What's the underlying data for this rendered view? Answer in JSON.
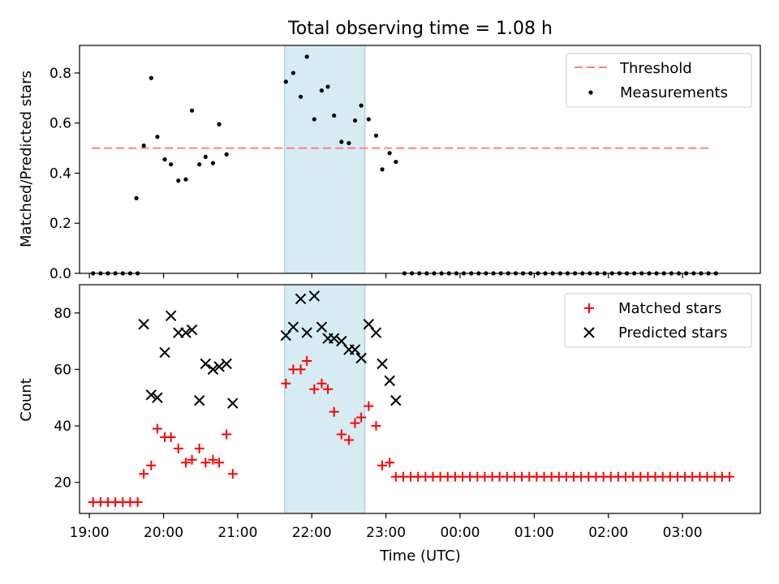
{
  "chart_data": [
    {
      "type": "scatter",
      "title": "Total observing time = 1.08 h",
      "ylabel": "Matched/Predicted stars",
      "xlabel": "",
      "xlim": [
        "18:52",
        "04:03"
      ],
      "ylim": [
        0,
        0.91
      ],
      "yticks": [
        "0.0",
        "0.2",
        "0.4",
        "0.6",
        "0.8"
      ],
      "grid": false,
      "legend_position": "top-right",
      "shaded_interval": [
        "21:38",
        "22:43"
      ],
      "threshold": {
        "name": "Threshold",
        "value": 0.5,
        "x_range": [
          "19:02",
          "03:22"
        ],
        "color": "#ff7f7f"
      },
      "series": [
        {
          "name": "Measurements",
          "color": "#000000",
          "points": [
            [
              "19:03",
              0
            ],
            [
              "19:09",
              0
            ],
            [
              "19:15",
              0
            ],
            [
              "19:21",
              0
            ],
            [
              "19:27",
              0
            ],
            [
              "19:33",
              0
            ],
            [
              "19:39",
              0
            ],
            [
              "19:38",
              0.3
            ],
            [
              "19:44",
              0.51
            ],
            [
              "19:50",
              0.78
            ],
            [
              "19:55",
              0.545
            ],
            [
              "20:01",
              0.455
            ],
            [
              "20:06",
              0.435
            ],
            [
              "20:12",
              0.37
            ],
            [
              "20:18",
              0.375
            ],
            [
              "20:23",
              0.65
            ],
            [
              "20:29",
              0.435
            ],
            [
              "20:34",
              0.465
            ],
            [
              "20:40",
              0.44
            ],
            [
              "20:45",
              0.595
            ],
            [
              "20:51",
              0.475
            ],
            [
              "21:39",
              0.765
            ],
            [
              "21:45",
              0.8
            ],
            [
              "21:51",
              0.705
            ],
            [
              "21:56",
              0.865
            ],
            [
              "22:02",
              0.615
            ],
            [
              "22:08",
              0.73
            ],
            [
              "22:13",
              0.745
            ],
            [
              "22:18",
              0.63
            ],
            [
              "22:24",
              0.525
            ],
            [
              "22:30",
              0.52
            ],
            [
              "22:35",
              0.61
            ],
            [
              "22:40",
              0.67
            ],
            [
              "22:46",
              0.615
            ],
            [
              "22:52",
              0.55
            ],
            [
              "22:57",
              0.415
            ],
            [
              "23:03",
              0.48
            ],
            [
              "23:08",
              0.445
            ],
            [
              "23:15",
              0
            ],
            [
              "23:21",
              0
            ],
            [
              "23:27",
              0
            ],
            [
              "23:33",
              0
            ],
            [
              "23:39",
              0
            ],
            [
              "23:45",
              0
            ],
            [
              "23:51",
              0
            ],
            [
              "23:57",
              0
            ],
            [
              "00:03",
              0
            ],
            [
              "00:09",
              0
            ],
            [
              "00:15",
              0
            ],
            [
              "00:21",
              0
            ],
            [
              "00:27",
              0
            ],
            [
              "00:33",
              0
            ],
            [
              "00:39",
              0
            ],
            [
              "00:45",
              0
            ],
            [
              "00:51",
              0
            ],
            [
              "00:57",
              0
            ],
            [
              "01:03",
              0
            ],
            [
              "01:09",
              0
            ],
            [
              "01:15",
              0
            ],
            [
              "01:21",
              0
            ],
            [
              "01:27",
              0
            ],
            [
              "01:33",
              0
            ],
            [
              "01:39",
              0
            ],
            [
              "01:45",
              0
            ],
            [
              "01:51",
              0
            ],
            [
              "01:57",
              0
            ],
            [
              "02:03",
              0
            ],
            [
              "02:09",
              0
            ],
            [
              "02:15",
              0
            ],
            [
              "02:21",
              0
            ],
            [
              "02:27",
              0
            ],
            [
              "02:33",
              0
            ],
            [
              "02:39",
              0
            ],
            [
              "02:45",
              0
            ],
            [
              "02:51",
              0
            ],
            [
              "02:57",
              0
            ],
            [
              "03:03",
              0
            ],
            [
              "03:09",
              0
            ],
            [
              "03:15",
              0
            ],
            [
              "03:21",
              0
            ],
            [
              "03:27",
              0
            ]
          ]
        }
      ]
    },
    {
      "type": "scatter",
      "title": "",
      "ylabel": "Count",
      "xlabel": "Time (UTC)",
      "xlim": [
        "18:52",
        "04:03"
      ],
      "ylim": [
        9,
        90
      ],
      "yticks": [
        "20",
        "40",
        "60",
        "80"
      ],
      "xticks": [
        "19:00",
        "20:00",
        "21:00",
        "22:00",
        "23:00",
        "00:00",
        "01:00",
        "02:00",
        "03:00"
      ],
      "grid": false,
      "legend_position": "top-right",
      "shaded_interval": [
        "21:38",
        "22:43"
      ],
      "series": [
        {
          "name": "Matched stars",
          "marker": "plus",
          "color": "#ff0000",
          "points": [
            [
              "19:03",
              13
            ],
            [
              "19:09",
              13
            ],
            [
              "19:15",
              13
            ],
            [
              "19:21",
              13
            ],
            [
              "19:27",
              13
            ],
            [
              "19:33",
              13
            ],
            [
              "19:39",
              13
            ],
            [
              "19:44",
              23
            ],
            [
              "19:50",
              26
            ],
            [
              "19:55",
              39
            ],
            [
              "20:01",
              36
            ],
            [
              "20:06",
              36
            ],
            [
              "20:12",
              32
            ],
            [
              "20:18",
              27
            ],
            [
              "20:23",
              28
            ],
            [
              "20:29",
              32
            ],
            [
              "20:34",
              27
            ],
            [
              "20:40",
              28
            ],
            [
              "20:45",
              27
            ],
            [
              "20:51",
              37
            ],
            [
              "20:56",
              23
            ],
            [
              "21:39",
              55
            ],
            [
              "21:45",
              60
            ],
            [
              "21:51",
              60
            ],
            [
              "21:56",
              63
            ],
            [
              "22:02",
              53
            ],
            [
              "22:08",
              55
            ],
            [
              "22:13",
              53
            ],
            [
              "22:18",
              45
            ],
            [
              "22:24",
              37
            ],
            [
              "22:30",
              35
            ],
            [
              "22:35",
              41
            ],
            [
              "22:40",
              43
            ],
            [
              "22:46",
              47
            ],
            [
              "22:52",
              40
            ],
            [
              "22:57",
              26
            ],
            [
              "23:03",
              27
            ],
            [
              "23:08",
              22
            ],
            [
              "23:14",
              22
            ],
            [
              "23:20",
              22
            ],
            [
              "23:26",
              22
            ],
            [
              "23:32",
              22
            ],
            [
              "23:38",
              22
            ],
            [
              "23:44",
              22
            ],
            [
              "23:50",
              22
            ],
            [
              "23:56",
              22
            ],
            [
              "00:02",
              22
            ],
            [
              "00:08",
              22
            ],
            [
              "00:14",
              22
            ],
            [
              "00:20",
              22
            ],
            [
              "00:26",
              22
            ],
            [
              "00:32",
              22
            ],
            [
              "00:38",
              22
            ],
            [
              "00:44",
              22
            ],
            [
              "00:50",
              22
            ],
            [
              "00:56",
              22
            ],
            [
              "01:02",
              22
            ],
            [
              "01:08",
              22
            ],
            [
              "01:14",
              22
            ],
            [
              "01:20",
              22
            ],
            [
              "01:26",
              22
            ],
            [
              "01:32",
              22
            ],
            [
              "01:38",
              22
            ],
            [
              "01:44",
              22
            ],
            [
              "01:50",
              22
            ],
            [
              "01:56",
              22
            ],
            [
              "02:02",
              22
            ],
            [
              "02:08",
              22
            ],
            [
              "02:14",
              22
            ],
            [
              "02:20",
              22
            ],
            [
              "02:26",
              22
            ],
            [
              "02:32",
              22
            ],
            [
              "02:38",
              22
            ],
            [
              "02:44",
              22
            ],
            [
              "02:50",
              22
            ],
            [
              "02:56",
              22
            ],
            [
              "03:02",
              22
            ],
            [
              "03:08",
              22
            ],
            [
              "03:14",
              22
            ],
            [
              "03:20",
              22
            ],
            [
              "03:26",
              22
            ],
            [
              "03:32",
              22
            ],
            [
              "03:38",
              22
            ]
          ]
        },
        {
          "name": "Predicted stars",
          "marker": "x",
          "color": "#000000",
          "points": [
            [
              "19:44",
              76
            ],
            [
              "19:50",
              51
            ],
            [
              "19:55",
              50
            ],
            [
              "20:01",
              66
            ],
            [
              "20:06",
              79
            ],
            [
              "20:12",
              73
            ],
            [
              "20:18",
              73
            ],
            [
              "20:23",
              74
            ],
            [
              "20:29",
              49
            ],
            [
              "20:34",
              62
            ],
            [
              "20:40",
              60
            ],
            [
              "20:45",
              61
            ],
            [
              "20:51",
              62
            ],
            [
              "20:56",
              48
            ],
            [
              "21:39",
              72
            ],
            [
              "21:45",
              75
            ],
            [
              "21:51",
              85
            ],
            [
              "21:56",
              73
            ],
            [
              "22:02",
              86
            ],
            [
              "22:08",
              75
            ],
            [
              "22:13",
              71
            ],
            [
              "22:18",
              71
            ],
            [
              "22:24",
              70
            ],
            [
              "22:30",
              67
            ],
            [
              "22:35",
              67
            ],
            [
              "22:40",
              64
            ],
            [
              "22:46",
              76
            ],
            [
              "22:52",
              73
            ],
            [
              "22:57",
              62
            ],
            [
              "23:03",
              56
            ],
            [
              "23:08",
              49
            ]
          ]
        }
      ]
    }
  ]
}
